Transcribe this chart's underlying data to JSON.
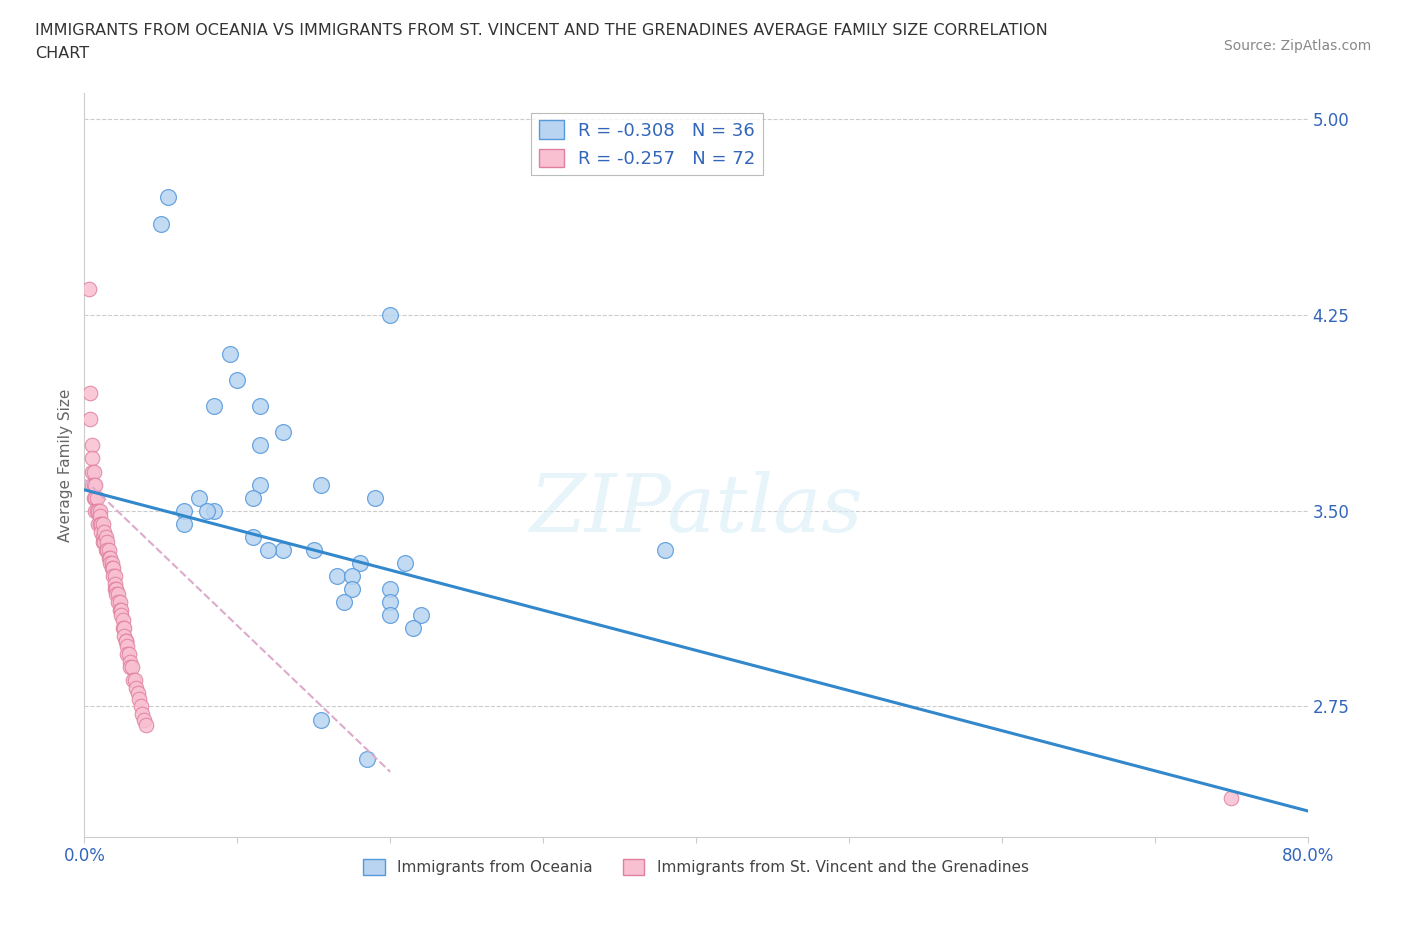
{
  "title_line1": "IMMIGRANTS FROM OCEANIA VS IMMIGRANTS FROM ST. VINCENT AND THE GRENADINES AVERAGE FAMILY SIZE CORRELATION",
  "title_line2": "CHART",
  "source_text": "Source: ZipAtlas.com",
  "ylabel": "Average Family Size",
  "xlim": [
    0,
    0.8
  ],
  "ylim": [
    2.25,
    5.1
  ],
  "xticks": [
    0.0,
    0.1,
    0.2,
    0.3,
    0.4,
    0.5,
    0.6,
    0.7,
    0.8
  ],
  "xticklabels": [
    "0.0%",
    "",
    "",
    "",
    "",
    "",
    "",
    "",
    "80.0%"
  ],
  "yticks_right": [
    5.0,
    4.25,
    3.5,
    2.75
  ],
  "hlines": [
    5.0,
    4.25,
    3.5,
    2.75
  ],
  "legend_r1": "R = -0.308   N = 36",
  "legend_r2": "R = -0.257   N = 72",
  "color_oceania_fill": "#b8d4f0",
  "color_oceania_edge": "#5599dd",
  "color_svg_fill": "#f8c0d0",
  "color_svg_edge": "#e080a0",
  "color_line_oceania": "#3388cc",
  "color_line_svg": "#ddaacc",
  "background_color": "#ffffff",
  "oceania_x": [
    0.055,
    0.05,
    0.095,
    0.1,
    0.085,
    0.115,
    0.13,
    0.115,
    0.155,
    0.115,
    0.075,
    0.11,
    0.19,
    0.065,
    0.085,
    0.08,
    0.065,
    0.11,
    0.13,
    0.15,
    0.12,
    0.18,
    0.21,
    0.165,
    0.175,
    0.175,
    0.2,
    0.17,
    0.2,
    0.2,
    0.22,
    0.215,
    0.38,
    0.2,
    0.155,
    0.185
  ],
  "oceania_y": [
    4.7,
    4.6,
    4.1,
    4.0,
    3.9,
    3.9,
    3.8,
    3.75,
    3.6,
    3.6,
    3.55,
    3.55,
    3.55,
    3.5,
    3.5,
    3.5,
    3.45,
    3.4,
    3.35,
    3.35,
    3.35,
    3.3,
    3.3,
    3.25,
    3.25,
    3.2,
    3.2,
    3.15,
    3.15,
    3.1,
    3.1,
    3.05,
    3.35,
    4.25,
    2.7,
    2.55
  ],
  "svg_x": [
    0.003,
    0.004,
    0.004,
    0.005,
    0.005,
    0.005,
    0.005,
    0.006,
    0.006,
    0.006,
    0.007,
    0.007,
    0.007,
    0.008,
    0.008,
    0.009,
    0.009,
    0.01,
    0.01,
    0.01,
    0.011,
    0.011,
    0.012,
    0.012,
    0.012,
    0.013,
    0.013,
    0.014,
    0.014,
    0.015,
    0.015,
    0.016,
    0.016,
    0.017,
    0.017,
    0.018,
    0.018,
    0.019,
    0.019,
    0.02,
    0.02,
    0.02,
    0.021,
    0.021,
    0.022,
    0.022,
    0.023,
    0.023,
    0.024,
    0.024,
    0.025,
    0.025,
    0.026,
    0.026,
    0.027,
    0.027,
    0.028,
    0.028,
    0.029,
    0.03,
    0.03,
    0.031,
    0.032,
    0.033,
    0.034,
    0.035,
    0.036,
    0.037,
    0.038,
    0.039,
    0.04,
    0.75
  ],
  "svg_y": [
    4.35,
    3.95,
    3.85,
    3.75,
    3.7,
    3.65,
    3.6,
    3.65,
    3.6,
    3.55,
    3.6,
    3.55,
    3.5,
    3.55,
    3.5,
    3.5,
    3.45,
    3.5,
    3.48,
    3.45,
    3.45,
    3.42,
    3.45,
    3.4,
    3.38,
    3.42,
    3.38,
    3.4,
    3.35,
    3.38,
    3.35,
    3.35,
    3.32,
    3.32,
    3.3,
    3.3,
    3.28,
    3.28,
    3.25,
    3.25,
    3.22,
    3.2,
    3.2,
    3.18,
    3.18,
    3.15,
    3.15,
    3.12,
    3.12,
    3.1,
    3.08,
    3.05,
    3.05,
    3.02,
    3.0,
    3.0,
    2.98,
    2.95,
    2.95,
    2.92,
    2.9,
    2.9,
    2.85,
    2.85,
    2.82,
    2.8,
    2.78,
    2.75,
    2.72,
    2.7,
    2.68,
    2.4
  ],
  "line_oceania_x0": 0.0,
  "line_oceania_y0": 3.58,
  "line_oceania_x1": 0.8,
  "line_oceania_y1": 2.35,
  "line_svg_x0": 0.0,
  "line_svg_y0": 3.62,
  "line_svg_x1": 0.2,
  "line_svg_y1": 2.5
}
